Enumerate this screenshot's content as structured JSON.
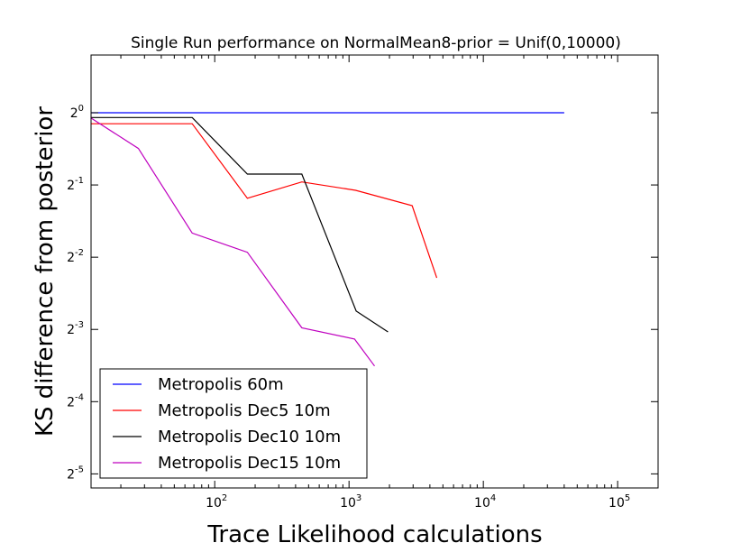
{
  "chart_data": {
    "type": "line",
    "title": "Single Run performance on NormalMean8-prior = Unif(0,10000)",
    "xlabel": "Trace Likelihood calculations",
    "ylabel": "KS difference from posterior",
    "x_scale": "log10",
    "y_scale": "log2",
    "xlim": [
      12,
      200000
    ],
    "ylim": [
      0.0273,
      1.74
    ],
    "x_ticks": [
      {
        "value": 100,
        "base": "10",
        "exp": "2"
      },
      {
        "value": 1000,
        "base": "10",
        "exp": "3"
      },
      {
        "value": 10000,
        "base": "10",
        "exp": "4"
      },
      {
        "value": 100000,
        "base": "10",
        "exp": "5"
      }
    ],
    "y_ticks": [
      {
        "value": 1,
        "base": "2",
        "exp": "0"
      },
      {
        "value": 0.5,
        "base": "2",
        "exp": "-1"
      },
      {
        "value": 0.25,
        "base": "2",
        "exp": "-2"
      },
      {
        "value": 0.125,
        "base": "2",
        "exp": "-3"
      },
      {
        "value": 0.0625,
        "base": "2",
        "exp": "-4"
      },
      {
        "value": 0.03125,
        "base": "2",
        "exp": "-5"
      }
    ],
    "legend_position": "lower-left",
    "grid": false,
    "series": [
      {
        "name": "Metropolis 60m",
        "color": "#0000ff",
        "x": [
          12,
          40000
        ],
        "y": [
          1.0,
          1.0
        ]
      },
      {
        "name": "Metropolis Dec5 10m",
        "color": "#ff0000",
        "x": [
          12,
          68,
          175,
          445,
          1120,
          2950,
          4500
        ],
        "y": [
          0.9,
          0.9,
          0.44,
          0.515,
          0.475,
          0.41,
          0.205
        ]
      },
      {
        "name": "Metropolis Dec10 10m",
        "color": "#000000",
        "x": [
          12,
          68,
          175,
          445,
          1130,
          1950
        ],
        "y": [
          0.955,
          0.955,
          0.555,
          0.555,
          0.149,
          0.122
        ]
      },
      {
        "name": "Metropolis Dec15 10m",
        "color": "#bf00bf",
        "x": [
          12,
          27,
          68,
          175,
          445,
          1100,
          1550
        ],
        "y": [
          0.95,
          0.71,
          0.315,
          0.262,
          0.127,
          0.114,
          0.088
        ]
      }
    ]
  }
}
